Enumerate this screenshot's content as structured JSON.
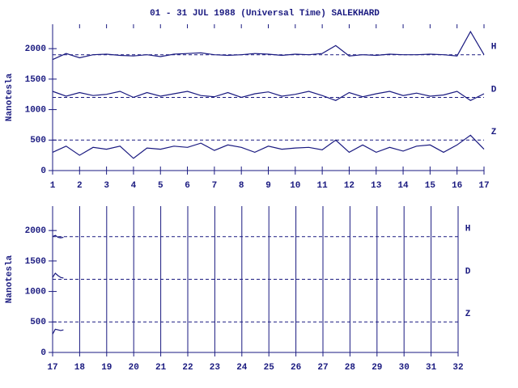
{
  "chart_data": [
    {
      "type": "line",
      "title": "01 - 31 JUL 1988 (Universal Time) SALEKHARD",
      "ylabel": "Nanotesla",
      "x": [
        1,
        1.5,
        2,
        2.5,
        3,
        3.5,
        4,
        4.5,
        5,
        5.5,
        6,
        6.5,
        7,
        7.5,
        8,
        8.5,
        9,
        9.5,
        10,
        10.5,
        11,
        11.5,
        12,
        12.5,
        13,
        13.5,
        14,
        14.5,
        15,
        15.5,
        16,
        16.5,
        17
      ],
      "series": [
        {
          "name": "H",
          "color": "#1a1a80",
          "values": [
            1820,
            1920,
            1850,
            1900,
            1910,
            1890,
            1880,
            1900,
            1870,
            1910,
            1920,
            1930,
            1900,
            1890,
            1900,
            1920,
            1910,
            1890,
            1910,
            1900,
            1920,
            2050,
            1880,
            1900,
            1890,
            1910,
            1900,
            1900,
            1910,
            1900,
            1880,
            2280,
            1900
          ]
        },
        {
          "name": "D",
          "color": "#1a1a80",
          "values": [
            1300,
            1220,
            1280,
            1230,
            1250,
            1300,
            1200,
            1280,
            1220,
            1260,
            1300,
            1230,
            1210,
            1280,
            1200,
            1260,
            1290,
            1220,
            1250,
            1300,
            1230,
            1150,
            1280,
            1210,
            1260,
            1300,
            1230,
            1270,
            1220,
            1240,
            1300,
            1150,
            1260
          ]
        },
        {
          "name": "Z",
          "color": "#1a1a80",
          "values": [
            300,
            400,
            250,
            380,
            350,
            400,
            200,
            370,
            350,
            400,
            380,
            450,
            330,
            420,
            380,
            300,
            400,
            350,
            370,
            380,
            340,
            500,
            300,
            420,
            300,
            380,
            320,
            400,
            420,
            300,
            420,
            580,
            350
          ]
        }
      ],
      "reference_lines": [
        {
          "label": "H",
          "value": 1900
        },
        {
          "label": "D",
          "value": 1200
        },
        {
          "label": "Z",
          "value": 500
        }
      ],
      "xlim": [
        1,
        17
      ],
      "xticks": [
        1,
        2,
        3,
        4,
        5,
        6,
        7,
        8,
        9,
        10,
        11,
        12,
        13,
        14,
        15,
        16,
        17
      ],
      "ylim": [
        0,
        2400
      ],
      "yticks": [
        0,
        500,
        1000,
        1500,
        2000
      ],
      "vgrid": false
    },
    {
      "type": "line",
      "ylabel": "Nanotesla",
      "x": [
        17,
        17.1,
        17.2,
        17.3,
        17.4
      ],
      "series": [
        {
          "name": "H",
          "color": "#1a1a80",
          "values": [
            1900,
            1920,
            1890,
            1880,
            1890
          ]
        },
        {
          "name": "D",
          "color": "#1a1a80",
          "values": [
            1230,
            1300,
            1260,
            1230,
            1220
          ]
        },
        {
          "name": "Z",
          "color": "#1a1a80",
          "values": [
            300,
            380,
            370,
            360,
            370
          ]
        }
      ],
      "reference_lines": [
        {
          "label": "H",
          "value": 1900
        },
        {
          "label": "D",
          "value": 1200
        },
        {
          "label": "Z",
          "value": 500
        }
      ],
      "xlim": [
        17,
        32
      ],
      "xticks": [
        17,
        18,
        19,
        20,
        21,
        22,
        23,
        24,
        25,
        26,
        27,
        28,
        29,
        30,
        31,
        32
      ],
      "ylim": [
        0,
        2400
      ],
      "yticks": [
        0,
        500,
        1000,
        1500,
        2000
      ],
      "vgrid": true
    }
  ]
}
